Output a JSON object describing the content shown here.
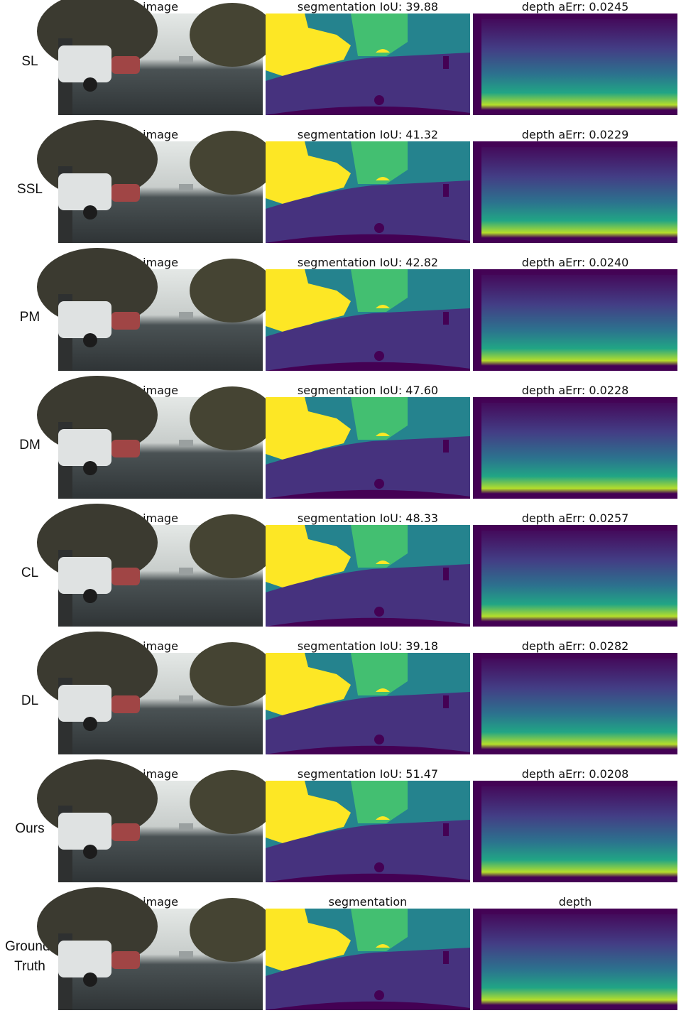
{
  "rows": [
    {
      "label": "SL",
      "titles": [
        "image",
        "segmentation IoU: 39.88",
        "depth aErr: 0.0245"
      ]
    },
    {
      "label": "SSL",
      "titles": [
        "image",
        "segmentation IoU: 41.32",
        "depth aErr: 0.0229"
      ]
    },
    {
      "label": "PM",
      "titles": [
        "image",
        "segmentation IoU: 42.82",
        "depth aErr: 0.0240"
      ]
    },
    {
      "label": "DM",
      "titles": [
        "image",
        "segmentation IoU: 47.60",
        "depth aErr: 0.0228"
      ]
    },
    {
      "label": "CL",
      "titles": [
        "image",
        "segmentation IoU: 48.33",
        "depth aErr: 0.0257"
      ]
    },
    {
      "label": "DL",
      "titles": [
        "image",
        "segmentation IoU: 39.18",
        "depth aErr: 0.0282"
      ]
    },
    {
      "label": "Ours",
      "titles": [
        "image",
        "segmentation IoU: 51.47",
        "depth aErr: 0.0208"
      ]
    },
    {
      "label": "Ground-\nTruth",
      "titles": [
        "image",
        "segmentation",
        "depth"
      ]
    }
  ]
}
